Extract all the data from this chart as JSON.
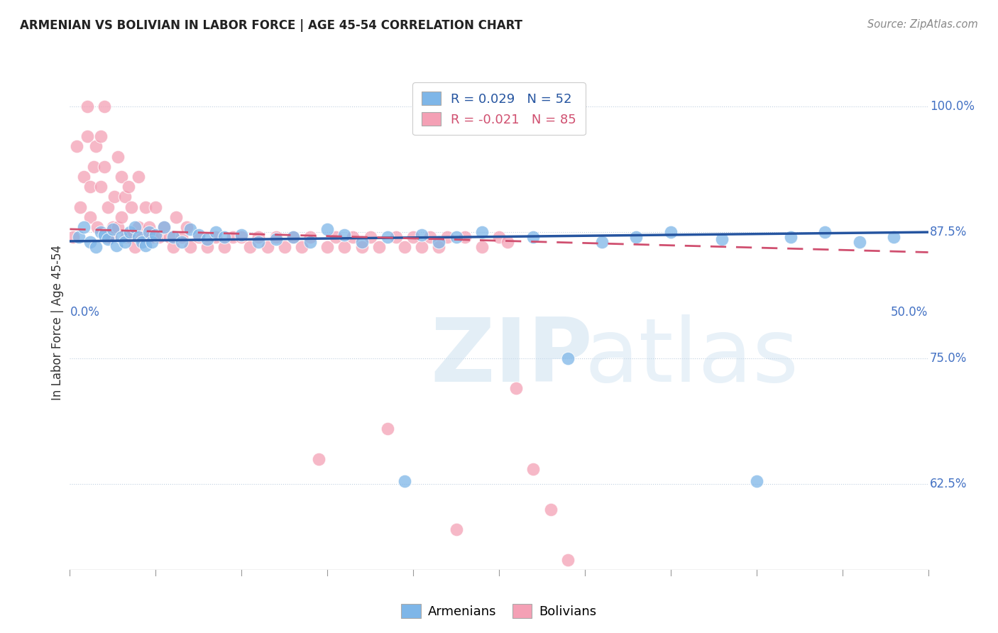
{
  "title": "ARMENIAN VS BOLIVIAN IN LABOR FORCE | AGE 45-54 CORRELATION CHART",
  "source": "Source: ZipAtlas.com",
  "ylabel": "In Labor Force | Age 45-54",
  "xlim": [
    0.0,
    0.5
  ],
  "ylim": [
    0.54,
    1.03
  ],
  "legend_armenians": "Armenians",
  "legend_bolivians": "Bolivians",
  "r_armenian": 0.029,
  "n_armenian": 52,
  "r_bolivian": -0.021,
  "n_bolivian": 85,
  "blue_color": "#7eb6e8",
  "pink_color": "#f4a0b5",
  "trend_blue": "#2655a0",
  "trend_pink": "#d05070",
  "ytick_vals": [
    0.625,
    0.75,
    0.875,
    1.0
  ],
  "ytick_labels": [
    "62.5%",
    "75.0%",
    "87.5%",
    "100.0%"
  ],
  "arm_trend_y0": 0.866,
  "arm_trend_y1": 0.875,
  "bol_trend_y0": 0.878,
  "bol_trend_y1": 0.855,
  "armenian_x": [
    0.005,
    0.008,
    0.012,
    0.015,
    0.018,
    0.02,
    0.022,
    0.025,
    0.027,
    0.03,
    0.032,
    0.035,
    0.038,
    0.04,
    0.042,
    0.044,
    0.046,
    0.048,
    0.05,
    0.055,
    0.06,
    0.065,
    0.07,
    0.075,
    0.08,
    0.085,
    0.09,
    0.1,
    0.11,
    0.12,
    0.13,
    0.14,
    0.15,
    0.16,
    0.17,
    0.185,
    0.195,
    0.205,
    0.215,
    0.225,
    0.24,
    0.27,
    0.29,
    0.31,
    0.33,
    0.35,
    0.38,
    0.4,
    0.42,
    0.44,
    0.46,
    0.48
  ],
  "armenian_y": [
    0.87,
    0.88,
    0.865,
    0.86,
    0.875,
    0.872,
    0.868,
    0.878,
    0.862,
    0.87,
    0.865,
    0.875,
    0.88,
    0.87,
    0.865,
    0.862,
    0.875,
    0.865,
    0.872,
    0.88,
    0.87,
    0.865,
    0.878,
    0.872,
    0.868,
    0.875,
    0.87,
    0.872,
    0.865,
    0.868,
    0.87,
    0.865,
    0.878,
    0.872,
    0.865,
    0.87,
    0.628,
    0.872,
    0.865,
    0.87,
    0.875,
    0.87,
    0.75,
    0.865,
    0.87,
    0.875,
    0.868,
    0.628,
    0.87,
    0.875,
    0.865,
    0.87
  ],
  "bolivian_x": [
    0.002,
    0.004,
    0.006,
    0.008,
    0.01,
    0.01,
    0.012,
    0.012,
    0.014,
    0.015,
    0.016,
    0.018,
    0.018,
    0.02,
    0.02,
    0.022,
    0.022,
    0.024,
    0.025,
    0.026,
    0.028,
    0.028,
    0.03,
    0.03,
    0.032,
    0.033,
    0.034,
    0.035,
    0.036,
    0.038,
    0.04,
    0.04,
    0.042,
    0.044,
    0.045,
    0.046,
    0.048,
    0.05,
    0.052,
    0.055,
    0.058,
    0.06,
    0.062,
    0.065,
    0.068,
    0.07,
    0.075,
    0.08,
    0.085,
    0.09,
    0.095,
    0.1,
    0.105,
    0.11,
    0.115,
    0.12,
    0.125,
    0.13,
    0.135,
    0.14,
    0.145,
    0.15,
    0.155,
    0.16,
    0.165,
    0.17,
    0.175,
    0.18,
    0.185,
    0.19,
    0.195,
    0.2,
    0.205,
    0.21,
    0.215,
    0.22,
    0.225,
    0.23,
    0.24,
    0.25,
    0.255,
    0.26,
    0.27,
    0.28,
    0.29
  ],
  "bolivian_y": [
    0.87,
    0.96,
    0.9,
    0.93,
    1.0,
    0.97,
    0.92,
    0.89,
    0.94,
    0.96,
    0.88,
    0.92,
    0.97,
    1.0,
    0.94,
    0.9,
    0.87,
    0.87,
    0.88,
    0.91,
    0.95,
    0.88,
    0.89,
    0.93,
    0.91,
    0.87,
    0.92,
    0.87,
    0.9,
    0.86,
    0.88,
    0.93,
    0.87,
    0.9,
    0.87,
    0.88,
    0.87,
    0.9,
    0.87,
    0.88,
    0.87,
    0.86,
    0.89,
    0.87,
    0.88,
    0.86,
    0.87,
    0.86,
    0.87,
    0.86,
    0.87,
    0.87,
    0.86,
    0.87,
    0.86,
    0.87,
    0.86,
    0.87,
    0.86,
    0.87,
    0.65,
    0.86,
    0.87,
    0.86,
    0.87,
    0.86,
    0.87,
    0.86,
    0.68,
    0.87,
    0.86,
    0.87,
    0.86,
    0.87,
    0.86,
    0.87,
    0.58,
    0.87,
    0.86,
    0.87,
    0.865,
    0.72,
    0.64,
    0.6,
    0.55
  ]
}
